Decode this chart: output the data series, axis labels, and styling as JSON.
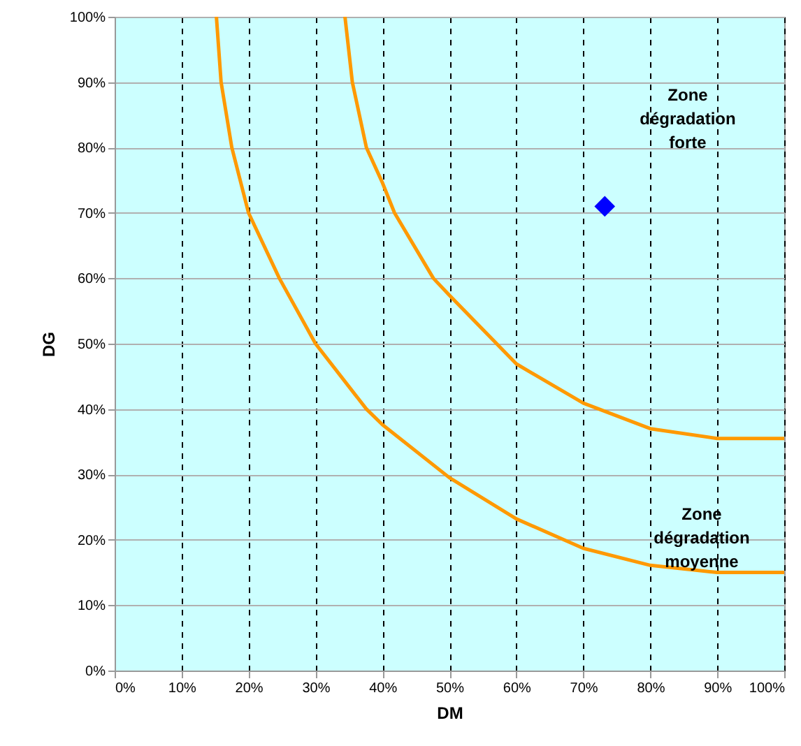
{
  "chart_data": {
    "type": "line",
    "xlabel": "DM",
    "ylabel": "DG",
    "xlim": [
      0,
      100
    ],
    "ylim": [
      0,
      100
    ],
    "xticks": [
      {
        "value": 0,
        "label": "0%"
      },
      {
        "value": 10,
        "label": "10%"
      },
      {
        "value": 20,
        "label": "20%"
      },
      {
        "value": 30,
        "label": "30%"
      },
      {
        "value": 40,
        "label": "40%"
      },
      {
        "value": 50,
        "label": "50%"
      },
      {
        "value": 60,
        "label": "60%"
      },
      {
        "value": 70,
        "label": "70%"
      },
      {
        "value": 80,
        "label": "80%"
      },
      {
        "value": 90,
        "label": "90%"
      },
      {
        "value": 100,
        "label": "100%"
      }
    ],
    "yticks": [
      {
        "value": 0,
        "label": "0%"
      },
      {
        "value": 10,
        "label": "10%"
      },
      {
        "value": 20,
        "label": "20%"
      },
      {
        "value": 30,
        "label": "30%"
      },
      {
        "value": 40,
        "label": "40%"
      },
      {
        "value": 50,
        "label": "50%"
      },
      {
        "value": 60,
        "label": "60%"
      },
      {
        "value": 70,
        "label": "70%"
      },
      {
        "value": 80,
        "label": "80%"
      },
      {
        "value": 90,
        "label": "90%"
      },
      {
        "value": 100,
        "label": "100%"
      }
    ],
    "grid": true,
    "series": [
      {
        "color": "#ff9900",
        "x": [
          15.2,
          15.9,
          17.5,
          20,
          24.6,
          30,
          37.6,
          40,
          50,
          60,
          70,
          80,
          90,
          100
        ],
        "values": [
          100,
          90,
          80,
          70,
          60,
          50,
          40,
          37.6,
          29.5,
          23.2,
          18.7,
          16.1,
          15,
          15
        ]
      },
      {
        "color": "#ff9900",
        "x": [
          34.4,
          35.5,
          37.6,
          40,
          41.8,
          47.6,
          50,
          60,
          70,
          80,
          90,
          100
        ],
        "values": [
          100,
          90,
          80,
          74.6,
          70,
          60,
          57.4,
          46.9,
          40.9,
          37,
          35.5,
          35.5
        ]
      },
      {
        "type": "scatter",
        "color": "#0000ff",
        "marker": "diamond",
        "x": [
          73.2
        ],
        "values": [
          71
        ]
      }
    ],
    "annotations": [
      "Zone dégradation forte",
      "Zone dégradation moyenne"
    ]
  }
}
